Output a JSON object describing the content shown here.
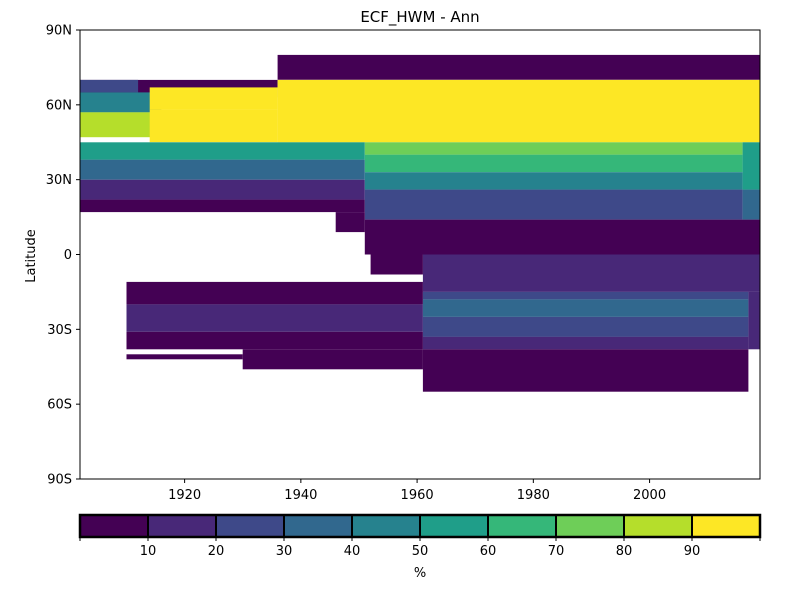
{
  "chart_data": {
    "type": "heatmap",
    "title": "ECF_HWM - Ann",
    "xlabel": "",
    "ylabel": "Latitude",
    "xlim": [
      1902,
      2019
    ],
    "ylim": [
      -90,
      90
    ],
    "x_ticks": [
      {
        "value": 1920,
        "label": "1920"
      },
      {
        "value": 1940,
        "label": "1940"
      },
      {
        "value": 1960,
        "label": "1960"
      },
      {
        "value": 1980,
        "label": "1980"
      },
      {
        "value": 2000,
        "label": "2000"
      }
    ],
    "y_ticks": [
      {
        "value": 90,
        "label": "90N"
      },
      {
        "value": 60,
        "label": "60N"
      },
      {
        "value": 30,
        "label": "30N"
      },
      {
        "value": 0,
        "label": "0"
      },
      {
        "value": -30,
        "label": "30S"
      },
      {
        "value": -60,
        "label": "60S"
      },
      {
        "value": -90,
        "label": "90S"
      }
    ],
    "colorbar": {
      "label": "%",
      "bounds": [
        0,
        10,
        20,
        30,
        40,
        50,
        60,
        70,
        80,
        90,
        100
      ],
      "tick_labels": [
        "10",
        "20",
        "30",
        "40",
        "50",
        "60",
        "70",
        "80",
        "90"
      ],
      "colors": [
        "#440154",
        "#482878",
        "#3e4989",
        "#31688e",
        "#26828e",
        "#1f9e89",
        "#35b779",
        "#6ece58",
        "#b5de2b",
        "#fde725"
      ]
    },
    "cells": [
      {
        "x0": 1902,
        "x1": 1936,
        "lat0": 63,
        "lat1": 70,
        "v": 5
      },
      {
        "x0": 1936,
        "x1": 2019,
        "lat0": 70,
        "lat1": 80,
        "v": 5
      },
      {
        "x0": 1902,
        "x1": 1912,
        "lat0": 65,
        "lat1": 70,
        "v": 25
      },
      {
        "x0": 1902,
        "x1": 1916,
        "lat0": 57,
        "lat1": 65,
        "v": 45
      },
      {
        "x0": 1902,
        "x1": 1916,
        "lat0": 47,
        "lat1": 57,
        "v": 85
      },
      {
        "x0": 1914,
        "x1": 1936,
        "lat0": 58,
        "lat1": 67,
        "v": 95
      },
      {
        "x0": 1936,
        "x1": 2019,
        "lat0": 45,
        "lat1": 70,
        "v": 95
      },
      {
        "x0": 1914,
        "x1": 1936,
        "lat0": 45,
        "lat1": 58,
        "v": 95
      },
      {
        "x0": 1902,
        "x1": 1951,
        "lat0": 38,
        "lat1": 45,
        "v": 55
      },
      {
        "x0": 1902,
        "x1": 1951,
        "lat0": 30,
        "lat1": 38,
        "v": 35
      },
      {
        "x0": 1902,
        "x1": 1951,
        "lat0": 22,
        "lat1": 30,
        "v": 15
      },
      {
        "x0": 1902,
        "x1": 1951,
        "lat0": 17,
        "lat1": 22,
        "v": 5
      },
      {
        "x0": 1951,
        "x1": 2016,
        "lat0": 40,
        "lat1": 45,
        "v": 75
      },
      {
        "x0": 1951,
        "x1": 2016,
        "lat0": 33,
        "lat1": 40,
        "v": 65
      },
      {
        "x0": 1951,
        "x1": 2016,
        "lat0": 26,
        "lat1": 33,
        "v": 45
      },
      {
        "x0": 1951,
        "x1": 2016,
        "lat0": 14,
        "lat1": 26,
        "v": 25
      },
      {
        "x0": 2016,
        "x1": 2019,
        "lat0": 26,
        "lat1": 45,
        "v": 55
      },
      {
        "x0": 2016,
        "x1": 2019,
        "lat0": 14,
        "lat1": 26,
        "v": 35
      },
      {
        "x0": 1946,
        "x1": 1951,
        "lat0": 9,
        "lat1": 17,
        "v": 5
      },
      {
        "x0": 1951,
        "x1": 2019,
        "lat0": 0,
        "lat1": 14,
        "v": 5
      },
      {
        "x0": 1961,
        "x1": 2019,
        "lat0": -15,
        "lat1": 0,
        "v": 15
      },
      {
        "x0": 1952,
        "x1": 1961,
        "lat0": -8,
        "lat1": 0,
        "v": 5
      },
      {
        "x0": 1910,
        "x1": 1961,
        "lat0": -20,
        "lat1": -11,
        "v": 5
      },
      {
        "x0": 1910,
        "x1": 1961,
        "lat0": -31,
        "lat1": -20,
        "v": 15
      },
      {
        "x0": 1910,
        "x1": 1961,
        "lat0": -38,
        "lat1": -31,
        "v": 5
      },
      {
        "x0": 1961,
        "x1": 2017,
        "lat0": -18,
        "lat1": -15,
        "v": 25
      },
      {
        "x0": 1961,
        "x1": 2017,
        "lat0": -25,
        "lat1": -18,
        "v": 35
      },
      {
        "x0": 1961,
        "x1": 2017,
        "lat0": -33,
        "lat1": -25,
        "v": 25
      },
      {
        "x0": 1961,
        "x1": 2017,
        "lat0": -38,
        "lat1": -33,
        "v": 15
      },
      {
        "x0": 2017,
        "x1": 2019,
        "lat0": -38,
        "lat1": -15,
        "v": 15
      },
      {
        "x0": 1930,
        "x1": 1961,
        "lat0": -46,
        "lat1": -38,
        "v": 5
      },
      {
        "x0": 1961,
        "x1": 2017,
        "lat0": -55,
        "lat1": -38,
        "v": 5
      },
      {
        "x0": 1910,
        "x1": 1930,
        "lat0": -42,
        "lat1": -40,
        "v": 5
      }
    ]
  }
}
